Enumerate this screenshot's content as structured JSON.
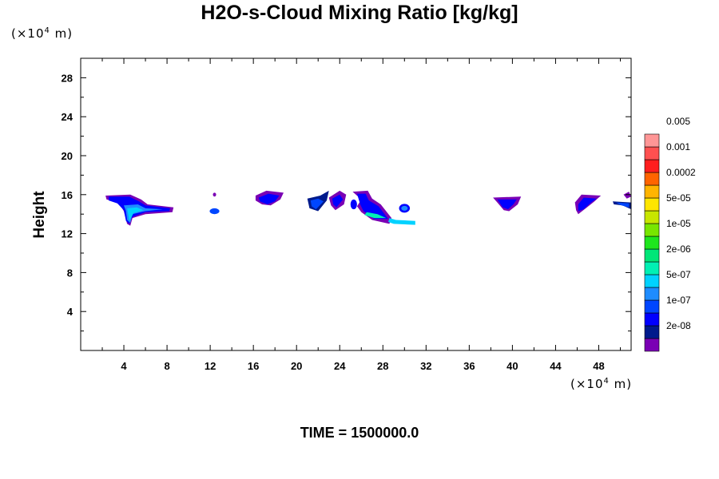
{
  "chart_data": {
    "type": "heatmap",
    "title": "H2O-s-Cloud Mixing Ratio [kg/kg]",
    "ylabel": "Height",
    "yunit": "(×10",
    "xunit": "(×10",
    "unit_exp": "4",
    "unit_suffix": " m)",
    "time_label": "TIME = 1500000.0",
    "xlim": [
      0,
      51
    ],
    "ylim": [
      0,
      30
    ],
    "x_ticks": [
      4,
      8,
      12,
      16,
      20,
      24,
      28,
      32,
      36,
      40,
      44,
      48
    ],
    "y_ticks": [
      4,
      8,
      12,
      16,
      20,
      24,
      28
    ],
    "colorbar": {
      "colors": [
        "#7a00b4",
        "#001a8c",
        "#0000ff",
        "#0046ff",
        "#1e8cff",
        "#00d2ff",
        "#00f0b4",
        "#00e678",
        "#1ee61e",
        "#78e600",
        "#c8e600",
        "#ffe600",
        "#ffb400",
        "#ff6400",
        "#ff1e1e",
        "#ff5050",
        "#ff9696"
      ],
      "labels": [
        "2e-08",
        "1e-07",
        "5e-07",
        "2e-06",
        "1e-05",
        "5e-05",
        "0.0002",
        "0.001",
        "0.005"
      ]
    },
    "cloud_regions": [
      {
        "x_range": [
          2.3,
          8.6
        ],
        "y_range": [
          12.8,
          16.0
        ],
        "max_level": "2e-06"
      },
      {
        "x_range": [
          11.9,
          12.9
        ],
        "y_range": [
          14.1,
          16.2
        ],
        "max_level": "5e-07"
      },
      {
        "x_range": [
          16.2,
          18.8
        ],
        "y_range": [
          14.8,
          16.5
        ],
        "max_level": "1e-07"
      },
      {
        "x_range": [
          21.0,
          26.0
        ],
        "y_range": [
          14.2,
          16.4
        ],
        "max_level": "1e-07"
      },
      {
        "x_range": [
          25.8,
          31.0
        ],
        "y_range": [
          12.8,
          16.3
        ],
        "max_level": "2e-06"
      },
      {
        "x_range": [
          29.5,
          30.6
        ],
        "y_range": [
          14.0,
          15.2
        ],
        "max_level": "5e-07"
      },
      {
        "x_range": [
          38.2,
          40.8
        ],
        "y_range": [
          14.3,
          15.9
        ],
        "max_level": "1e-07"
      },
      {
        "x_range": [
          45.8,
          48.2
        ],
        "y_range": [
          14.0,
          16.0
        ],
        "max_level": "1e-07"
      },
      {
        "x_range": [
          49.3,
          51.0
        ],
        "y_range": [
          14.5,
          16.2
        ],
        "max_level": "1e-07"
      }
    ]
  }
}
